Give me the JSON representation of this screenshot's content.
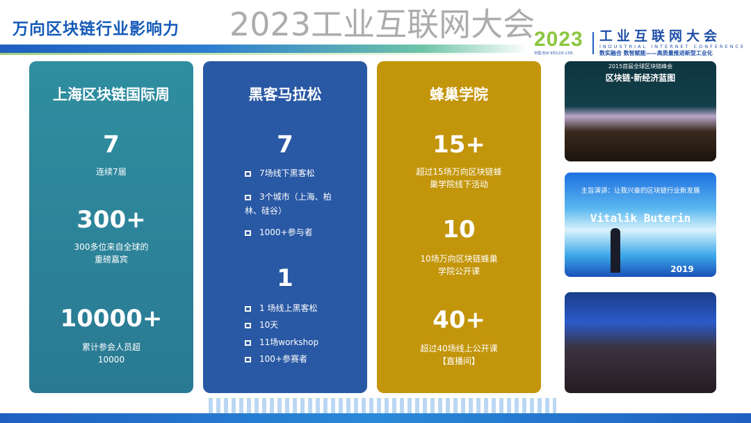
{
  "title": "万向区块链行业影响力",
  "logo": {
    "year": "2023",
    "name": "工业互联网大会",
    "english": "INDUSTRIAL INTERNET CONFERENCE",
    "slogan": "数实融合 数智赋能——高质量推进新型工业化",
    "date": "中国·苏州 9月11日-13日"
  },
  "cards": [
    {
      "title": "上海区块链国际周",
      "stats": [
        {
          "value": "7",
          "desc": "连续7届"
        },
        {
          "value": "300+",
          "desc": "300多位来自全球的重磅嘉宾"
        },
        {
          "value": "10000+",
          "desc": "累计参会人员超10000"
        }
      ]
    },
    {
      "title": "黑客马拉松",
      "groups": [
        {
          "value": "7",
          "items": [
            "7场线下黑客松",
            "3个城市（上海、柏林、硅谷）",
            "1000+参与者"
          ]
        },
        {
          "value": "1",
          "items": [
            "1 场线上黑客松",
            "10天",
            "11场workshop",
            "100+参赛者"
          ]
        }
      ]
    },
    {
      "title": "蜂巢学院",
      "stats": [
        {
          "value": "15+",
          "desc": "超过15场万向区块链蜂巢学院线下活动"
        },
        {
          "value": "10",
          "desc": "10场万向区块链蜂巢学院公开课"
        },
        {
          "value": "40+",
          "desc": "超过40场线上公开课【直播间】"
        }
      ]
    }
  ],
  "photos": [
    {
      "caption": "2015首届全球区块链峰会",
      "headline": "区块链·新经济蓝图"
    },
    {
      "caption": "主旨演讲：让我兴奋的区块链行业新发展",
      "speaker": "Vitalik Buterin",
      "badge": "2019"
    },
    {
      "caption": ""
    }
  ],
  "watermark": "2023工业互联网大会",
  "colors": {
    "card1": "#2f8ea0",
    "card2": "#2958a4",
    "card3": "#c3950a",
    "title": "#1459b8"
  }
}
